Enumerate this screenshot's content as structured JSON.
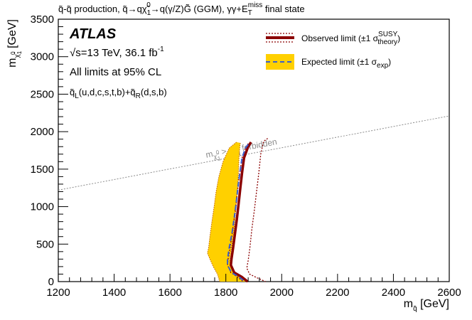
{
  "chart_data": {
    "type": "line",
    "title": "q̃-q̃ production, q̃→qχ̃₁⁰→q(γ/Z)G̃ (GGM), γγ+E_T^miss final state",
    "title_parts": {
      "pre": "q̃-q̃ production, q̃→qχ̃",
      "chi_sub": "1",
      "chi_sup": "0",
      "mid": "→q(γ/Z)G̃ (GGM), γγ+E",
      "et_sub": "T",
      "et_sup": "miss",
      "post": " final state"
    },
    "xlabel": "m_q̃ [GeV]",
    "xlabel_parts": {
      "m": "m",
      "sub": "q̃",
      "unit": " [GeV]"
    },
    "ylabel": "m_χ̃₁⁰ [GeV]",
    "ylabel_parts": {
      "m": "m",
      "sub": "χ̃",
      "subsub": "1",
      "subsup": "0",
      "unit": " [GeV]"
    },
    "xlim": [
      1200,
      2600
    ],
    "ylim": [
      0,
      3500
    ],
    "x_ticks": [
      "1200",
      "1400",
      "1600",
      "1800",
      "2000",
      "2200",
      "2400",
      "2600"
    ],
    "y_ticks": [
      "0",
      "500",
      "1000",
      "1500",
      "2000",
      "2500",
      "3000",
      "3500"
    ],
    "info": {
      "experiment": "ATLAS",
      "energy": "√s=13 TeV, 36.1 fb",
      "energy_sup": "-1",
      "cl": "All limits at 95% CL",
      "states_a": "q̃",
      "states_a_sub": "L",
      "states_a_tail": "(u,d,c,s,t,b)+q̃",
      "states_b_sub": "R",
      "states_b_tail": "(d,s,b)"
    },
    "legend": {
      "observed": "Observed limit (±1 σ",
      "observed_sup": "SUSY",
      "observed_sub": "theory",
      "observed_close": ")",
      "expected": "Expected limit (±1 σ",
      "expected_sub": "exp",
      "expected_close": ")"
    },
    "forbidden_label": {
      "m1": "m",
      "sub1": "χ̃",
      "sub1b": "1",
      "sub1c": "0",
      "gt": " > m",
      "sub2": "q̃",
      "tail": " forbidden"
    },
    "forbidden_line": {
      "x": [
        1200,
        2600
      ],
      "y": [
        1220,
        2210
      ]
    },
    "colors": {
      "observed": "#8b0000",
      "expected": "#3a5fcd",
      "band": "#ffd000",
      "band_edge": "#c06000",
      "forbidden": "#8c8c8c"
    },
    "series": [
      {
        "name": "Observed limit",
        "style": "solid-thick",
        "x": [
          1890,
          1880,
          1865,
          1858,
          1852,
          1846,
          1840,
          1833,
          1826,
          1820,
          1818,
          1830,
          1858,
          1878
        ],
        "y": [
          1860,
          1800,
          1650,
          1450,
          1250,
          1050,
          850,
          650,
          450,
          300,
          220,
          120,
          60,
          0
        ]
      },
      {
        "name": "Observed +1σ theory",
        "style": "dotted",
        "x": [
          1950,
          1935,
          1925,
          1918,
          1910,
          1902,
          1893,
          1886,
          1880,
          1875,
          1885,
          1912,
          1942
        ],
        "y": [
          1910,
          1870,
          1700,
          1450,
          1200,
          950,
          700,
          450,
          280,
          180,
          100,
          50,
          0
        ]
      },
      {
        "name": "Observed -1σ theory",
        "style": "dotted",
        "x": [
          1880,
          1870,
          1858,
          1850,
          1843,
          1837,
          1830,
          1823,
          1815,
          1808,
          1806,
          1818,
          1843,
          1862
        ],
        "y": [
          1840,
          1780,
          1650,
          1450,
          1250,
          1050,
          850,
          650,
          450,
          300,
          220,
          120,
          60,
          0
        ]
      },
      {
        "name": "Expected limit",
        "style": "dashed",
        "x": [
          1880,
          1870,
          1858,
          1850,
          1843,
          1837,
          1830,
          1822,
          1812,
          1806,
          1806,
          1820,
          1848,
          1868
        ],
        "y": [
          1830,
          1780,
          1650,
          1450,
          1250,
          1050,
          850,
          650,
          450,
          300,
          220,
          120,
          60,
          0
        ]
      },
      {
        "name": "Expected +1σ exp",
        "style": "band-upper",
        "x": [
          1852,
          1850,
          1847,
          1845,
          1842,
          1838,
          1833,
          1828,
          1820,
          1814,
          1816,
          1830,
          1855,
          1870
        ],
        "y": [
          1850,
          1800,
          1650,
          1450,
          1250,
          1050,
          850,
          650,
          450,
          300,
          220,
          120,
          60,
          0
        ]
      },
      {
        "name": "Expected -1σ exp",
        "style": "band-lower",
        "x": [
          1838,
          1812,
          1790,
          1775,
          1765,
          1758,
          1750,
          1743,
          1738,
          1734,
          1743,
          1755,
          1770,
          1778
        ],
        "y": [
          1860,
          1780,
          1600,
          1400,
          1200,
          1000,
          800,
          600,
          450,
          380,
          300,
          200,
          100,
          0
        ]
      }
    ]
  }
}
